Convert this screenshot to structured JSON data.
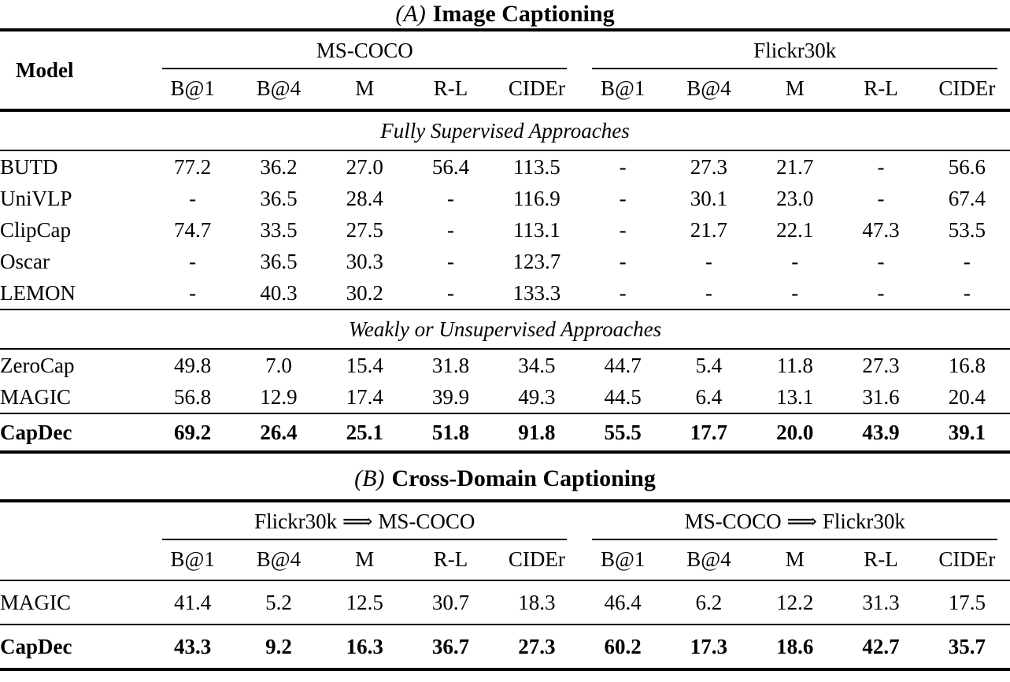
{
  "page": {
    "background_color": "#ffffff",
    "text_color": "#000000",
    "rule_color": "#000000"
  },
  "tableA": {
    "title_prefix": "(A)",
    "title": "Image Captioning",
    "model_header": "Model",
    "groups": [
      "MS-COCO",
      "Flickr30k"
    ],
    "metrics": [
      "B@1",
      "B@4",
      "M",
      "R-L",
      "CIDEr"
    ],
    "sections": [
      {
        "label": "Fully Supervised Approaches",
        "rows": [
          {
            "model": "BUTD",
            "values": [
              "77.2",
              "36.2",
              "27.0",
              "56.4",
              "113.5",
              "-",
              "27.3",
              "21.7",
              "-",
              "56.6"
            ]
          },
          {
            "model": "UniVLP",
            "values": [
              "-",
              "36.5",
              "28.4",
              "-",
              "116.9",
              "-",
              "30.1",
              "23.0",
              "-",
              "67.4"
            ]
          },
          {
            "model": "ClipCap",
            "values": [
              "74.7",
              "33.5",
              "27.5",
              "-",
              "113.1",
              "-",
              "21.7",
              "22.1",
              "47.3",
              "53.5"
            ]
          },
          {
            "model": "Oscar",
            "values": [
              "-",
              "36.5",
              "30.3",
              "-",
              "123.7",
              "-",
              "-",
              "-",
              "-",
              "-"
            ]
          },
          {
            "model": "LEMON",
            "values": [
              "-",
              "40.3",
              "30.2",
              "-",
              "133.3",
              "-",
              "-",
              "-",
              "-",
              "-"
            ]
          }
        ]
      },
      {
        "label": "Weakly or Unsupervised Approaches",
        "rows": [
          {
            "model": "ZeroCap",
            "values": [
              "49.8",
              "7.0",
              "15.4",
              "31.8",
              "34.5",
              "44.7",
              "5.4",
              "11.8",
              "27.3",
              "16.8"
            ]
          },
          {
            "model": "MAGIC",
            "values": [
              "56.8",
              "12.9",
              "17.4",
              "39.9",
              "49.3",
              "44.5",
              "6.4",
              "13.1",
              "31.6",
              "20.4"
            ]
          }
        ]
      }
    ],
    "highlight_row": {
      "model": "CapDec",
      "values": [
        "69.2",
        "26.4",
        "25.1",
        "51.8",
        "91.8",
        "55.5",
        "17.7",
        "20.0",
        "43.9",
        "39.1"
      ]
    }
  },
  "tableB": {
    "title_prefix": "(B)",
    "title": "Cross-Domain Captioning",
    "groups": [
      "Flickr30k ⟹ MS-COCO",
      "MS-COCO ⟹ Flickr30k"
    ],
    "metrics": [
      "B@1",
      "B@4",
      "M",
      "R-L",
      "CIDEr"
    ],
    "rows": [
      {
        "model": "MAGIC",
        "values": [
          "41.4",
          "5.2",
          "12.5",
          "30.7",
          "18.3",
          "46.4",
          "6.2",
          "12.2",
          "31.3",
          "17.5"
        ]
      },
      {
        "model": "CapDec",
        "values": [
          "43.3",
          "9.2",
          "16.3",
          "36.7",
          "27.3",
          "60.2",
          "17.3",
          "18.6",
          "42.7",
          "35.7"
        ]
      }
    ]
  }
}
